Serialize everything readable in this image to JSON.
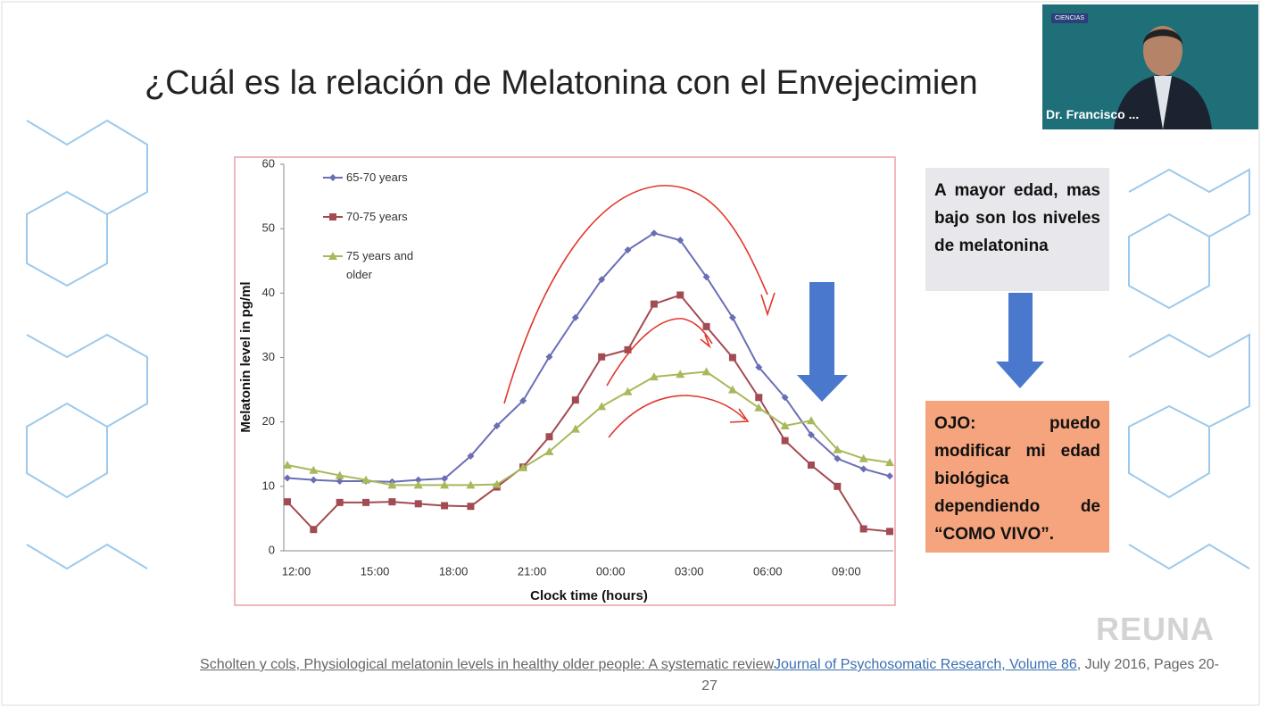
{
  "slide": {
    "title": "¿Cuál es la relación de Melatonina con el Envejecimien",
    "note_box": "A mayor edad, mas bajo son los niveles de melatonina",
    "warning_box": "OJO: puedo modificar mi edad biológica dependiendo de “COMO VIVO”.",
    "citation": {
      "text": "Scholten y cols, Physiological melatonin levels in healthy older people: A systematic review",
      "link": "Journal of Psychosomatic Research, Volume 86",
      "tail": ", July 2016, Pages 20-27"
    }
  },
  "video": {
    "name": "Dr. Francisco ...",
    "logo": "CIENCIAS"
  },
  "watermark": "REUNA",
  "chart_data": {
    "type": "line",
    "xlabel": "Clock time (hours)",
    "ylabel": "Melatonin level in pg/ml",
    "categories": [
      "12:00",
      null,
      null,
      "15:00",
      null,
      null,
      "18:00",
      null,
      null,
      "21:00",
      null,
      null,
      "00:00",
      null,
      null,
      "03:00",
      null,
      null,
      "06:00",
      null,
      null,
      "09:00",
      null,
      null
    ],
    "series": [
      {
        "name": "65-70 years",
        "color": "#6a6fb5",
        "marker": "diamond",
        "values": [
          11.3,
          11.0,
          10.8,
          10.8,
          10.7,
          11.0,
          11.2,
          14.7,
          19.4,
          23.3,
          30.1,
          36.2,
          42.1,
          46.7,
          49.3,
          48.2,
          42.5,
          36.2,
          28.5,
          23.8,
          18.0,
          14.3,
          12.7,
          11.6
        ]
      },
      {
        "name": "70-75 years",
        "color": "#a34b52",
        "marker": "square",
        "values": [
          7.6,
          3.3,
          7.5,
          7.5,
          7.6,
          7.3,
          7.0,
          6.9,
          9.9,
          13.0,
          17.7,
          23.4,
          30.1,
          31.2,
          38.3,
          39.7,
          34.8,
          30.0,
          23.8,
          17.1,
          13.3,
          10.0,
          3.4,
          3.0
        ]
      },
      {
        "name": "75 years and older",
        "color": "#a7b95b",
        "marker": "triangle",
        "values": [
          13.3,
          12.5,
          11.7,
          11.0,
          10.2,
          10.2,
          10.2,
          10.2,
          10.3,
          12.9,
          15.4,
          18.9,
          22.4,
          24.7,
          27.0,
          27.4,
          27.8,
          25.0,
          22.2,
          19.4,
          20.2,
          15.7,
          14.3,
          13.7
        ]
      }
    ],
    "ylim": [
      0,
      60
    ],
    "yticks": [
      0,
      10,
      20,
      30,
      40,
      50,
      60
    ],
    "grid": false
  }
}
